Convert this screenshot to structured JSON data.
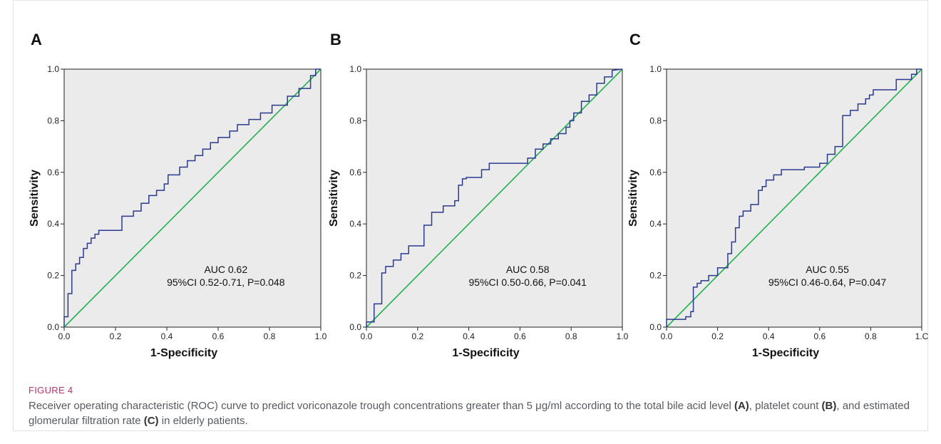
{
  "figure": {
    "label": "FIGURE 4",
    "caption_parts": [
      "Receiver operating characteristic (ROC) curve to predict voriconazole trough concentrations greater than 5 μg/ml according to the total bile acid level ",
      "(A)",
      ", platelet count ",
      "(B)",
      ", and estimated glomerular filtration rate ",
      "(C)",
      " in elderly patients."
    ]
  },
  "colors": {
    "roc_curve": "#2b3a8f",
    "reference_line": "#22b14c",
    "plot_background": "#ebebeb"
  },
  "chart_data": [
    {
      "type": "line",
      "panel": "A",
      "xlabel": "1-Specificity",
      "ylabel": "Sensitivity",
      "xlim": [
        0,
        1
      ],
      "ylim": [
        0,
        1
      ],
      "xticks": [
        "0.0",
        "0.2",
        "0.4",
        "0.6",
        "0.8",
        "1.0"
      ],
      "yticks": [
        "0.0",
        "0.2",
        "0.4",
        "0.6",
        "0.8",
        "1.0"
      ],
      "annotation": [
        "AUC 0.62",
        "95%CI 0.52-0.71, P=0.048"
      ],
      "series": [
        {
          "x": [
            0,
            0,
            0.015,
            0.015,
            0.03,
            0.03,
            0.045,
            0.045,
            0.06,
            0.06,
            0.075,
            0.075,
            0.09,
            0.09,
            0.105,
            0.105,
            0.12,
            0.12,
            0.135,
            0.135,
            0.225,
            0.225,
            0.27,
            0.27,
            0.3,
            0.3,
            0.33,
            0.33,
            0.36,
            0.36,
            0.39,
            0.39,
            0.405,
            0.405,
            0.45,
            0.45,
            0.48,
            0.48,
            0.51,
            0.51,
            0.54,
            0.54,
            0.57,
            0.57,
            0.6,
            0.6,
            0.645,
            0.645,
            0.675,
            0.675,
            0.72,
            0.72,
            0.765,
            0.765,
            0.81,
            0.81,
            0.87,
            0.87,
            0.915,
            0.915,
            0.96,
            0.96,
            0.98,
            0.98,
            1.0
          ],
          "y": [
            0,
            0.04,
            0.04,
            0.13,
            0.13,
            0.22,
            0.22,
            0.245,
            0.245,
            0.27,
            0.27,
            0.305,
            0.305,
            0.325,
            0.325,
            0.345,
            0.345,
            0.36,
            0.36,
            0.375,
            0.375,
            0.43,
            0.43,
            0.45,
            0.45,
            0.48,
            0.48,
            0.51,
            0.51,
            0.53,
            0.53,
            0.555,
            0.555,
            0.59,
            0.59,
            0.62,
            0.62,
            0.645,
            0.645,
            0.665,
            0.665,
            0.69,
            0.69,
            0.715,
            0.715,
            0.735,
            0.735,
            0.76,
            0.76,
            0.785,
            0.785,
            0.805,
            0.805,
            0.83,
            0.83,
            0.86,
            0.86,
            0.895,
            0.895,
            0.925,
            0.925,
            0.975,
            0.975,
            1.0,
            1.0
          ]
        },
        {
          "x": [
            0,
            1
          ],
          "y": [
            0,
            1
          ]
        }
      ]
    },
    {
      "type": "line",
      "panel": "B",
      "xlabel": "1-Specificity",
      "ylabel": "Sensitivity",
      "xlim": [
        0,
        1
      ],
      "ylim": [
        0,
        1
      ],
      "xticks": [
        "0.0",
        "0.2",
        "0.4",
        "0.6",
        "0.8",
        "1.0"
      ],
      "yticks": [
        "0.0",
        "0.2",
        "0.4",
        "0.6",
        "0.8",
        "1.0"
      ],
      "annotation": [
        "AUC 0.58",
        "95%CI 0.50-0.66, P=0.041"
      ],
      "series": [
        {
          "x": [
            0,
            0,
            0.03,
            0.03,
            0.06,
            0.06,
            0.075,
            0.075,
            0.105,
            0.105,
            0.135,
            0.135,
            0.165,
            0.165,
            0.225,
            0.225,
            0.255,
            0.255,
            0.3,
            0.3,
            0.345,
            0.345,
            0.36,
            0.36,
            0.375,
            0.375,
            0.39,
            0.39,
            0.45,
            0.45,
            0.48,
            0.48,
            0.63,
            0.63,
            0.66,
            0.66,
            0.69,
            0.69,
            0.72,
            0.72,
            0.75,
            0.75,
            0.78,
            0.78,
            0.795,
            0.795,
            0.81,
            0.81,
            0.84,
            0.84,
            0.87,
            0.87,
            0.9,
            0.9,
            0.93,
            0.93,
            0.96,
            0.96,
            1.0
          ],
          "y": [
            0,
            0.02,
            0.02,
            0.09,
            0.09,
            0.21,
            0.21,
            0.235,
            0.235,
            0.26,
            0.26,
            0.285,
            0.285,
            0.315,
            0.315,
            0.395,
            0.395,
            0.445,
            0.445,
            0.47,
            0.47,
            0.49,
            0.49,
            0.55,
            0.55,
            0.575,
            0.575,
            0.58,
            0.58,
            0.61,
            0.61,
            0.635,
            0.635,
            0.655,
            0.655,
            0.69,
            0.69,
            0.71,
            0.71,
            0.73,
            0.73,
            0.75,
            0.75,
            0.775,
            0.775,
            0.8,
            0.8,
            0.83,
            0.83,
            0.875,
            0.875,
            0.9,
            0.9,
            0.945,
            0.945,
            0.97,
            0.97,
            0.995,
            1.0
          ]
        },
        {
          "x": [
            0,
            1
          ],
          "y": [
            0,
            1
          ]
        }
      ]
    },
    {
      "type": "line",
      "panel": "C",
      "xlabel": "1-Specificity",
      "ylabel": "Sensitivity",
      "xlim": [
        0,
        1
      ],
      "ylim": [
        0,
        1
      ],
      "xticks": [
        "0.0",
        "0.2",
        "0.4",
        "0.6",
        "0.8",
        "1.C"
      ],
      "yticks": [
        "0.0",
        "0.2",
        "0.4",
        "0.6",
        "0.8",
        "1.0"
      ],
      "annotation": [
        "AUC 0.55",
        "95%CI 0.46-0.64, P=0.047"
      ],
      "series": [
        {
          "x": [
            0,
            0,
            0.075,
            0.075,
            0.095,
            0.095,
            0.105,
            0.105,
            0.12,
            0.12,
            0.135,
            0.135,
            0.165,
            0.165,
            0.2,
            0.2,
            0.24,
            0.24,
            0.255,
            0.255,
            0.27,
            0.27,
            0.285,
            0.285,
            0.3,
            0.3,
            0.33,
            0.33,
            0.36,
            0.36,
            0.375,
            0.375,
            0.39,
            0.39,
            0.42,
            0.42,
            0.45,
            0.45,
            0.54,
            0.54,
            0.6,
            0.6,
            0.63,
            0.63,
            0.66,
            0.66,
            0.69,
            0.69,
            0.72,
            0.72,
            0.75,
            0.75,
            0.78,
            0.78,
            0.795,
            0.795,
            0.81,
            0.81,
            0.9,
            0.9,
            0.96,
            0.96,
            0.98,
            0.98,
            1.0
          ],
          "y": [
            0,
            0.03,
            0.03,
            0.04,
            0.04,
            0.06,
            0.06,
            0.155,
            0.155,
            0.17,
            0.17,
            0.18,
            0.18,
            0.2,
            0.2,
            0.23,
            0.23,
            0.285,
            0.285,
            0.33,
            0.33,
            0.385,
            0.385,
            0.43,
            0.43,
            0.45,
            0.45,
            0.475,
            0.475,
            0.53,
            0.53,
            0.545,
            0.545,
            0.57,
            0.57,
            0.59,
            0.59,
            0.61,
            0.61,
            0.62,
            0.62,
            0.635,
            0.635,
            0.67,
            0.67,
            0.7,
            0.7,
            0.82,
            0.82,
            0.84,
            0.84,
            0.865,
            0.865,
            0.885,
            0.885,
            0.9,
            0.9,
            0.92,
            0.92,
            0.96,
            0.96,
            0.98,
            0.98,
            1.0,
            1.0
          ]
        },
        {
          "x": [
            0,
            1
          ],
          "y": [
            0,
            1
          ]
        }
      ]
    }
  ]
}
